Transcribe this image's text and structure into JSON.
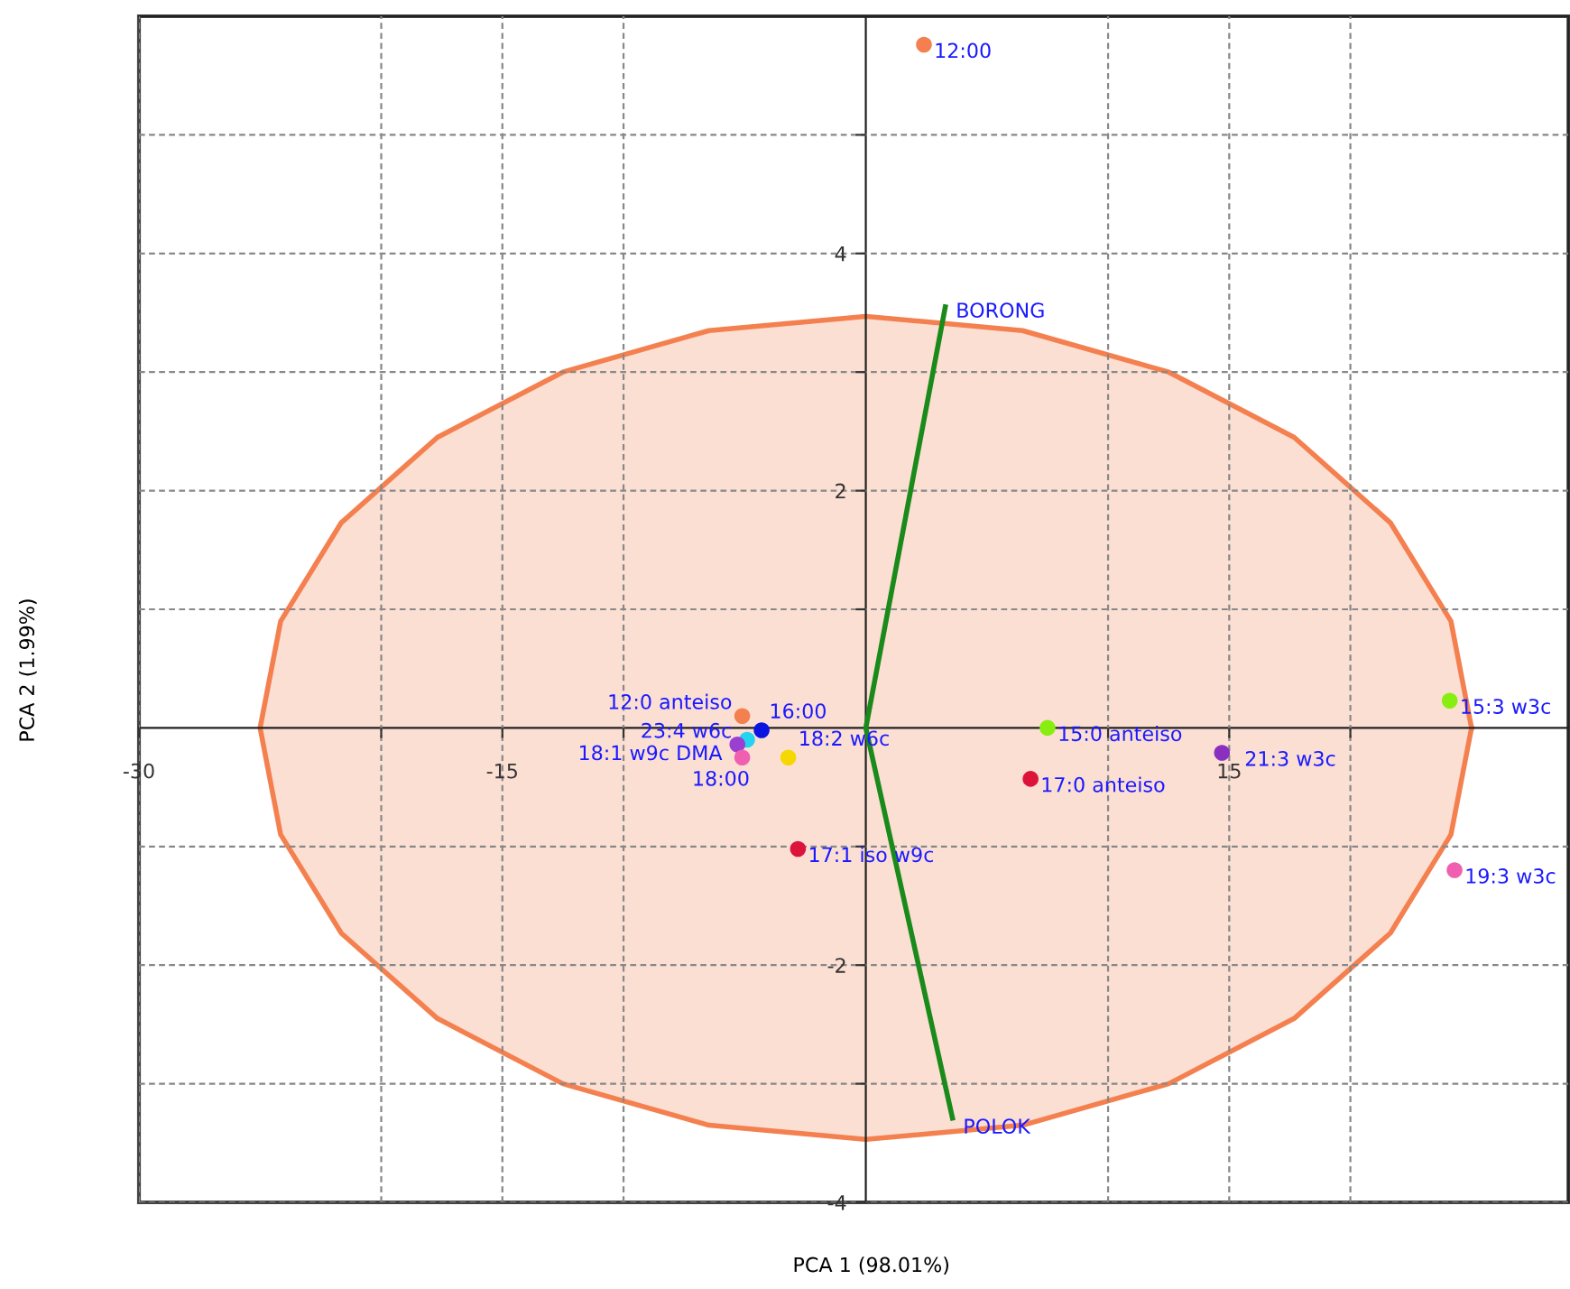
{
  "chart_data": {
    "type": "scatter",
    "xlabel": "PCA 1 (98.01%)",
    "ylabel": "PCA 2 (1.99%)",
    "xlim": [
      -30,
      29
    ],
    "ylim": [
      -4,
      6
    ],
    "xticks": [
      -30,
      {
        "value": -20,
        "label": null
      },
      -15,
      {
        "value": -10,
        "label": null
      },
      {
        "value": 10,
        "label": null
      },
      15,
      {
        "value": 20,
        "label": null
      }
    ],
    "yticks": [
      -4,
      {
        "value": -3,
        "label": null
      },
      -2,
      {
        "value": -1,
        "label": null
      },
      {
        "value": 1,
        "label": null
      },
      2,
      {
        "value": 3,
        "label": null
      },
      4,
      {
        "value": 5,
        "label": null
      }
    ],
    "grid": true,
    "series": [
      {
        "type": "area",
        "color": "#f4804f",
        "x": [
          25,
          24.15,
          21.65,
          17.68,
          12.5,
          6.47,
          0,
          -6.47,
          -12.5,
          -17.68,
          -21.65,
          -24.15,
          -25,
          -24.15,
          -21.65,
          -17.68,
          -12.5,
          -6.47,
          0,
          6.47,
          12.5,
          17.68,
          21.65,
          24.15,
          25
        ],
        "values": [
          0,
          0.9,
          1.73,
          2.45,
          3.0,
          3.35,
          3.47,
          3.35,
          3.0,
          2.45,
          1.73,
          0.9,
          0,
          -0.9,
          -1.73,
          -2.45,
          -3.0,
          -3.35,
          -3.47,
          -3.35,
          -3.0,
          -2.45,
          -1.73,
          -0.9,
          0
        ]
      },
      {
        "type": "line",
        "color": "#1a8a1a",
        "x": [
          3.3,
          0,
          3.6
        ],
        "values": [
          3.57,
          0,
          -3.31
        ]
      },
      {
        "marker": "circle",
        "x": [
          2.4,
          -5.1,
          -4.3,
          -4.9,
          -3.2,
          -5.3,
          -5.1,
          -2.8,
          7.5,
          6.8,
          14.7,
          24.1,
          24.3
        ],
        "values": [
          5.76,
          0.1,
          -0.02,
          -0.1,
          -0.25,
          -0.14,
          -0.25,
          -1.02,
          0.0,
          -0.43,
          -0.21,
          0.23,
          -1.2
        ],
        "colors": [
          "#f4804f",
          "#f4804f",
          "#0a14e0",
          "#22d4f0",
          "#f5d800",
          "#9b3fd0",
          "#f060b0",
          "#dc143c",
          "#88ee11",
          "#dc143c",
          "#8a2fc0",
          "#88ee11",
          "#f060b0"
        ]
      }
    ],
    "annotations": [
      {
        "text": "12:00",
        "x": 2.4,
        "y": 5.76
      },
      {
        "text": "12:0 anteiso",
        "x": -5.1,
        "y": 0.1
      },
      {
        "text": "16:00",
        "x": -4.3,
        "y": -0.02
      },
      {
        "text": "23:4 w6c",
        "x": -4.9,
        "y": -0.1
      },
      {
        "text": "18:2 w6c",
        "x": -3.2,
        "y": -0.25
      },
      {
        "text": "18:1 w9c DMA",
        "x": -5.3,
        "y": -0.14
      },
      {
        "text": "18:00",
        "x": -5.1,
        "y": -0.25
      },
      {
        "text": "17:1 iso w9c",
        "x": -2.8,
        "y": -1.02
      },
      {
        "text": "15:0 anteiso",
        "x": 7.5,
        "y": 0.0
      },
      {
        "text": "17:0 anteiso",
        "x": 6.8,
        "y": -0.43
      },
      {
        "text": "21:3 w3c",
        "x": 14.7,
        "y": -0.21
      },
      {
        "text": "15:3 w3c",
        "x": 24.1,
        "y": 0.23
      },
      {
        "text": "19:3 w3c",
        "x": 24.3,
        "y": -1.2
      },
      {
        "text": "BORONG",
        "x": 3.3,
        "y": 3.57
      },
      {
        "text": "POLOK",
        "x": 3.6,
        "y": -3.31
      }
    ]
  }
}
